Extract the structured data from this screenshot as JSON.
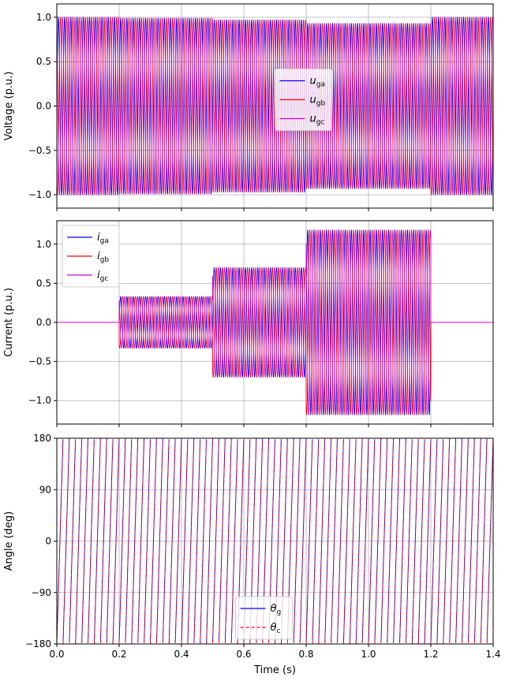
{
  "chart_data": [
    {
      "type": "line",
      "ylabel": "Voltage (p.u.)",
      "xlim": [
        0,
        1.4
      ],
      "ylim": [
        -1.15,
        1.15
      ],
      "yticks": [
        -1.0,
        -0.5,
        0.0,
        0.5,
        1.0
      ],
      "ytick_labels": [
        "−1.0",
        "−0.5",
        "0.0",
        "0.5",
        "1.0"
      ],
      "grid": true,
      "legend_position": "center",
      "frequency_hz": 50,
      "amplitude_segments": [
        {
          "t_start": 0.0,
          "t_end": 0.2,
          "amplitude": 1.0
        },
        {
          "t_start": 0.2,
          "t_end": 0.5,
          "amplitude": 0.99
        },
        {
          "t_start": 0.5,
          "t_end": 0.8,
          "amplitude": 0.97
        },
        {
          "t_start": 0.8,
          "t_end": 1.2,
          "amplitude": 0.93
        },
        {
          "t_start": 1.2,
          "t_end": 1.4,
          "amplitude": 1.0
        }
      ],
      "series": [
        {
          "name": "u_ga",
          "label_main": "u",
          "label_sub": "ga",
          "color": "#0000ff",
          "dash": "solid",
          "phase_deg": 0
        },
        {
          "name": "u_gb",
          "label_main": "u",
          "label_sub": "gb",
          "color": "#ff0000",
          "dash": "solid",
          "phase_deg": -120
        },
        {
          "name": "u_gc",
          "label_main": "u",
          "label_sub": "gc",
          "color": "#cc00cc",
          "dash": "solid",
          "phase_deg": 120
        }
      ]
    },
    {
      "type": "line",
      "ylabel": "Current (p.u.)",
      "xlim": [
        0,
        1.4
      ],
      "ylim": [
        -1.3,
        1.3
      ],
      "yticks": [
        -1.0,
        -0.5,
        0.0,
        0.5,
        1.0
      ],
      "ytick_labels": [
        "−1.0",
        "−0.5",
        "0.0",
        "0.5",
        "1.0"
      ],
      "grid": true,
      "legend_position": "upper left",
      "frequency_hz": 50,
      "amplitude_segments": [
        {
          "t_start": 0.0,
          "t_end": 0.2,
          "amplitude": 0.0
        },
        {
          "t_start": 0.2,
          "t_end": 0.5,
          "amplitude": 0.33
        },
        {
          "t_start": 0.5,
          "t_end": 0.8,
          "amplitude": 0.7
        },
        {
          "t_start": 0.8,
          "t_end": 1.2,
          "amplitude": 1.18
        },
        {
          "t_start": 1.2,
          "t_end": 1.4,
          "amplitude": 0.0
        }
      ],
      "series": [
        {
          "name": "i_ga",
          "label_main": "i",
          "label_sub": "ga",
          "color": "#0000ff",
          "dash": "solid",
          "phase_deg": 0
        },
        {
          "name": "i_gb",
          "label_main": "i",
          "label_sub": "gb",
          "color": "#ff0000",
          "dash": "solid",
          "phase_deg": -120
        },
        {
          "name": "i_gc",
          "label_main": "i",
          "label_sub": "gc",
          "color": "#cc00cc",
          "dash": "solid",
          "phase_deg": 120
        }
      ]
    },
    {
      "type": "line",
      "ylabel": "Angle (deg)",
      "xlabel": "Time (s)",
      "xlim": [
        0,
        1.4
      ],
      "ylim": [
        -180,
        180
      ],
      "xticks": [
        0.0,
        0.2,
        0.4,
        0.6,
        0.8,
        1.0,
        1.2,
        1.4
      ],
      "xtick_labels": [
        "0.0",
        "0.2",
        "0.4",
        "0.6",
        "0.8",
        "1.0",
        "1.2",
        "1.4"
      ],
      "yticks": [
        -180,
        -90,
        0,
        90,
        180
      ],
      "ytick_labels": [
        "−180",
        "−90",
        "0",
        "90",
        "180"
      ],
      "grid": true,
      "legend_position": "lower center",
      "frequency_hz": 50,
      "series": [
        {
          "name": "theta_g",
          "label_main": "θ",
          "label_sub": "g",
          "color": "#0000ff",
          "dash": "solid"
        },
        {
          "name": "theta_c",
          "label_main": "θ",
          "label_sub": "c",
          "color": "#ff0000",
          "dash": "dashed"
        }
      ]
    }
  ]
}
